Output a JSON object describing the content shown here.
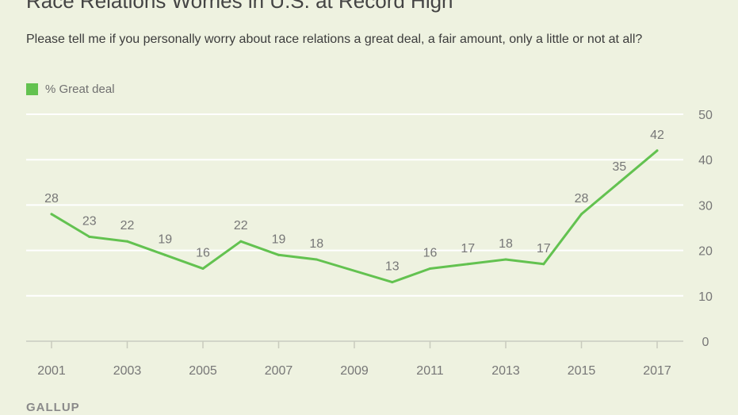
{
  "title": "Race Relations Worries in U.S. at Record High",
  "subtitle": "Please tell me if you personally worry about race relations a great deal, a fair amount, only a little or not at all?",
  "source": "GALLUP",
  "colors": {
    "line": "#63c250",
    "grid": "#ffffff",
    "text": "#777777",
    "background": "#eef2e0"
  },
  "chart_data": {
    "type": "line",
    "title": "Race Relations Worries in U.S. at Record High",
    "xlabel": "",
    "ylabel": "",
    "ylim": [
      0,
      50
    ],
    "yticks": [
      0,
      10,
      20,
      30,
      40,
      50
    ],
    "xticks": [
      2001,
      2003,
      2005,
      2007,
      2009,
      2011,
      2013,
      2015,
      2017
    ],
    "xlim": [
      2001,
      2017
    ],
    "grid": true,
    "legend_position": "top-left",
    "series": [
      {
        "name": "% Great deal",
        "color": "#63c250",
        "x": [
          2001,
          2002,
          2003,
          2004,
          2005,
          2006,
          2007,
          2008,
          2010,
          2011,
          2012,
          2013,
          2014,
          2015,
          2016,
          2017
        ],
        "values": [
          28,
          23,
          22,
          19,
          16,
          22,
          19,
          18,
          13,
          16,
          17,
          18,
          17,
          28,
          35,
          42
        ]
      }
    ]
  }
}
